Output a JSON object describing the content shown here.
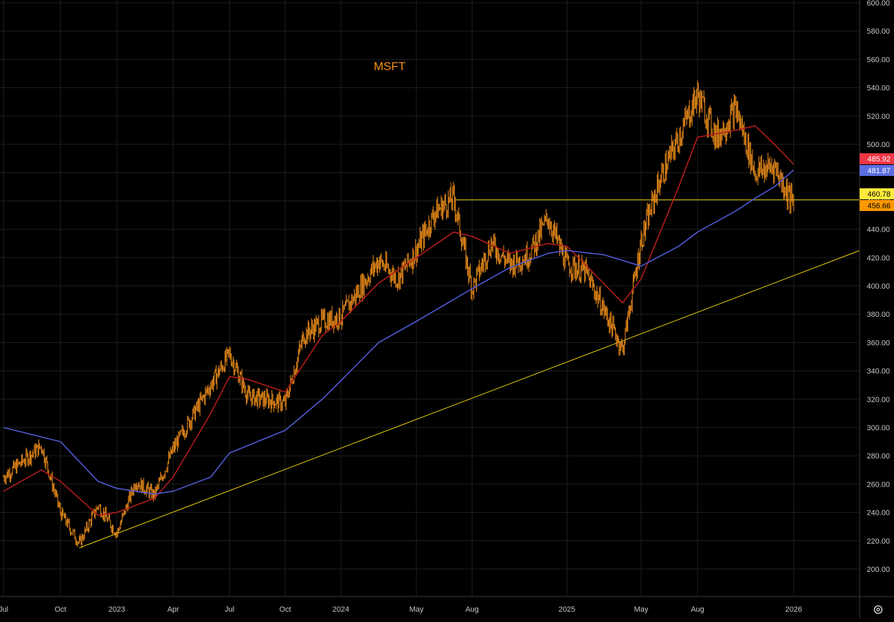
{
  "symbol": "MSFT",
  "colors": {
    "background": "#000000",
    "grid": "#1f1f1f",
    "axis_text": "#c8c8c8",
    "price": "#f7931a",
    "ma_fast": "#b71c1c",
    "ma_slow": "#4f5bd5",
    "trendline": "#f5d90a",
    "badge_ma_fast": "#f23645",
    "badge_ma_slow": "#5b6ee1",
    "badge_level": "#ffeb3b",
    "badge_price": "#ff9800"
  },
  "settings_icon": "gear-icon",
  "chart_data": {
    "type": "line",
    "title": "MSFT",
    "ylim": [
      180,
      600
    ],
    "y_ticks": [
      "200.00",
      "220.00",
      "240.00",
      "260.00",
      "280.00",
      "300.00",
      "320.00",
      "340.00",
      "360.00",
      "380.00",
      "400.00",
      "420.00",
      "440.00",
      "460.00",
      "480.00",
      "500.00",
      "520.00",
      "540.00",
      "560.00",
      "580.00",
      "600.00"
    ],
    "x_ticks": [
      "Jul",
      "Oct",
      "2023",
      "Apr",
      "Jul",
      "Oct",
      "2024",
      "May",
      "Aug",
      "2025",
      "May",
      "Aug",
      "2026"
    ],
    "grid": true,
    "series": [
      {
        "kind": "price",
        "points": [
          [
            "Jul",
            265
          ],
          [
            "Sep",
            287
          ],
          [
            "Oct",
            240
          ],
          [
            "Nov",
            218
          ],
          [
            "Dec",
            245
          ],
          [
            "2023",
            225
          ],
          [
            "Feb",
            262
          ],
          [
            "Mar",
            252
          ],
          [
            "Apr",
            285
          ],
          [
            "Jun",
            330
          ],
          [
            "Jul",
            352
          ],
          [
            "Aug",
            322
          ],
          [
            "Oct",
            317
          ],
          [
            "Nov",
            365
          ],
          [
            "Dec",
            375
          ],
          [
            "2024",
            378
          ],
          [
            "Mar",
            418
          ],
          [
            "Apr",
            405
          ],
          [
            "May",
            425
          ],
          [
            "Jun",
            452
          ],
          [
            "Jul",
            462
          ],
          [
            "Aug",
            398
          ],
          [
            "Sep",
            430
          ],
          [
            "Oct",
            415
          ],
          [
            "Nov",
            422
          ],
          [
            "Dec",
            448
          ],
          [
            "2025",
            415
          ],
          [
            "Feb",
            410
          ],
          [
            "Mar",
            383
          ],
          [
            "Apr",
            355
          ],
          [
            "May",
            432
          ],
          [
            "Jun",
            475
          ],
          [
            "Jul",
            505
          ],
          [
            "Aug",
            535
          ],
          [
            "Sep",
            505
          ],
          [
            "Oct",
            525
          ],
          [
            "Nov",
            480
          ],
          [
            "Dec",
            485
          ],
          [
            "2026",
            456.66
          ]
        ]
      },
      {
        "kind": "moving-average-fast",
        "points": [
          [
            "Jul",
            255
          ],
          [
            "Sep",
            270
          ],
          [
            "Oct",
            262
          ],
          [
            "Dec",
            238
          ],
          [
            "2023",
            240
          ],
          [
            "Mar",
            250
          ],
          [
            "Apr",
            265
          ],
          [
            "Jun",
            310
          ],
          [
            "Jul",
            336
          ],
          [
            "Aug",
            334
          ],
          [
            "Oct",
            325
          ],
          [
            "Dec",
            365
          ],
          [
            "2024",
            375
          ],
          [
            "Mar",
            402
          ],
          [
            "May",
            420
          ],
          [
            "Jul",
            438
          ],
          [
            "Aug",
            435
          ],
          [
            "Oct",
            423
          ],
          [
            "Dec",
            430
          ],
          [
            "2025",
            428
          ],
          [
            "Feb",
            415
          ],
          [
            "Apr",
            388
          ],
          [
            "May",
            405
          ],
          [
            "Jul",
            470
          ],
          [
            "Aug",
            505
          ],
          [
            "Oct",
            510
          ],
          [
            "Nov",
            513
          ],
          [
            "Dec",
            500
          ],
          [
            "2026",
            485.92
          ]
        ]
      },
      {
        "kind": "moving-average-slow",
        "points": [
          [
            "Jul",
            300
          ],
          [
            "Oct",
            290
          ],
          [
            "Dec",
            262
          ],
          [
            "2023",
            257
          ],
          [
            "Mar",
            253
          ],
          [
            "Apr",
            255
          ],
          [
            "Jun",
            265
          ],
          [
            "Jul",
            282
          ],
          [
            "Oct",
            298
          ],
          [
            "Dec",
            320
          ],
          [
            "2024",
            333
          ],
          [
            "Mar",
            360
          ],
          [
            "May",
            375
          ],
          [
            "Aug",
            398
          ],
          [
            "Oct",
            413
          ],
          [
            "Dec",
            423
          ],
          [
            "2025",
            425
          ],
          [
            "Mar",
            422
          ],
          [
            "May",
            414
          ],
          [
            "Jul",
            428
          ],
          [
            "Aug",
            438
          ],
          [
            "Oct",
            453
          ],
          [
            "Nov",
            462
          ],
          [
            "Dec",
            470
          ],
          [
            "2026",
            481.87
          ]
        ]
      }
    ],
    "lines": [
      {
        "kind": "horizontal-level",
        "value": 460.78
      },
      {
        "kind": "trendline",
        "from": [
          "Nov 2022",
          215
        ],
        "to": [
          "2026",
          425
        ]
      }
    ],
    "badges": [
      {
        "label": "485.92",
        "value": 485.92,
        "color_key": "badge_ma_fast",
        "text_color": "#ffffff"
      },
      {
        "label": "481.87",
        "value": 481.87,
        "color_key": "badge_ma_slow",
        "text_color": "#ffffff"
      },
      {
        "label": "460.78",
        "value": 460.78,
        "color_key": "badge_level",
        "text_color": "#000000"
      },
      {
        "label": "456.66",
        "value": 456.66,
        "color_key": "badge_price",
        "text_color": "#000000"
      }
    ]
  }
}
